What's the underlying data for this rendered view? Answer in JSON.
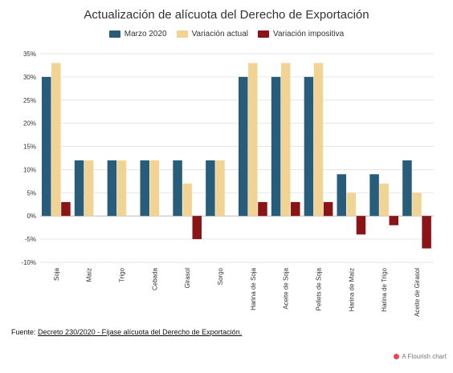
{
  "title": "Actualización de alícuota del Derecho de Exportación",
  "source": {
    "prefix": "Fuente:",
    "link_text": "Decreto 230/2020 - Fíjase alícuota del Derecho de Exportación."
  },
  "flourish": {
    "label": "A Flourish chart"
  },
  "colors": {
    "grid": "#e6e6e6",
    "zero_line": "#bbbbbb"
  },
  "chart_data": {
    "type": "bar",
    "title": "Actualización de alícuota del Derecho de Exportación",
    "xlabel": "",
    "ylabel": "",
    "ylim": [
      -10,
      35
    ],
    "y_ticks": [
      35,
      30,
      25,
      20,
      15,
      10,
      5,
      0,
      -5,
      -10
    ],
    "y_tick_labels": [
      "35%",
      "30%",
      "25%",
      "20%",
      "15%",
      "10%",
      "5%",
      "0%",
      "-5%",
      "-10%"
    ],
    "grid": true,
    "legend_position": "top",
    "categories": [
      "Soja",
      "Maíz",
      "Trigo",
      "Cebada",
      "Girasol",
      "Sorgo",
      "Harina de Soja",
      "Aceite de Soja",
      "Pellets de Soja",
      "Harina de Maíz",
      "Harina de Trigo",
      "Aceite de Girasol"
    ],
    "series": [
      {
        "name": "Marzo 2020",
        "color": "#275d7a",
        "values": [
          30,
          12,
          12,
          12,
          12,
          12,
          30,
          30,
          30,
          9,
          9,
          12
        ]
      },
      {
        "name": "Variación actual",
        "color": "#f1d494",
        "values": [
          33,
          12,
          12,
          12,
          7,
          12,
          33,
          33,
          33,
          5,
          7,
          5
        ]
      },
      {
        "name": "Variación impositiva",
        "color": "#8b1416",
        "values": [
          3,
          0,
          0,
          0,
          -5,
          0,
          3,
          3,
          3,
          -4,
          -2,
          -7
        ]
      }
    ]
  }
}
